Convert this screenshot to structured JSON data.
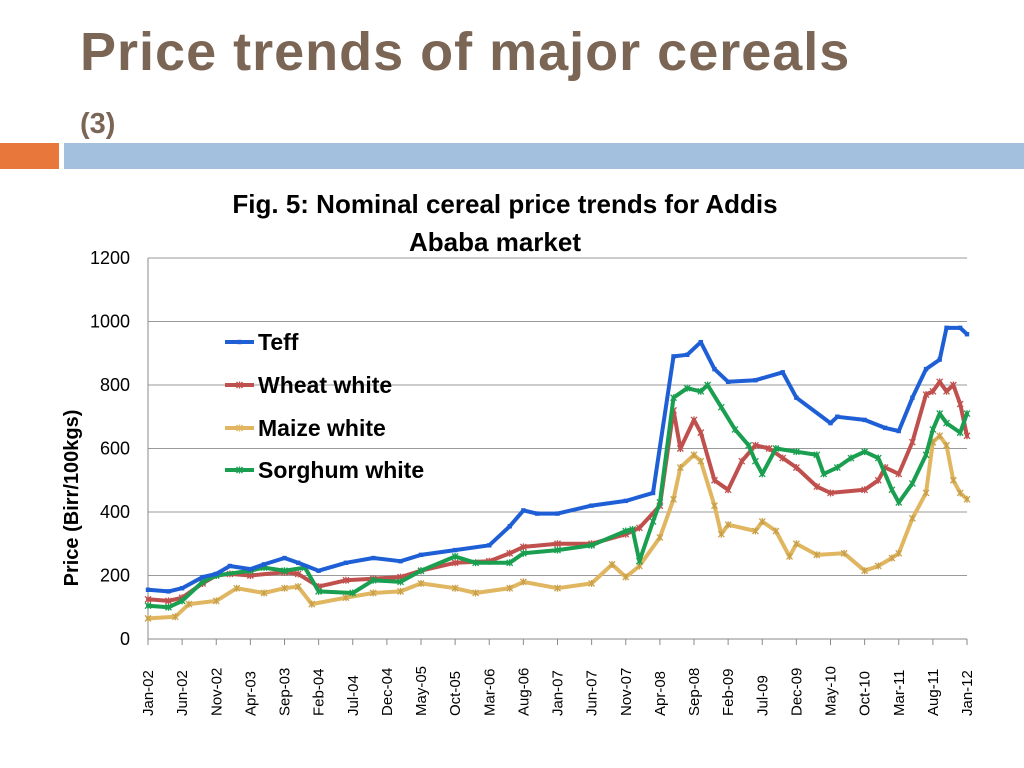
{
  "slide": {
    "title": "Price trends of major cereals",
    "subtitle": "(3)"
  },
  "chart_data": {
    "type": "line",
    "title_lines": [
      "Fig. 5: Nominal cereal price trends for Addis",
      "Ababa market"
    ],
    "ylabel": "Price (Birr/100kgs)",
    "xlabel": "",
    "ylim": [
      0,
      1200
    ],
    "yticks": [
      0,
      200,
      400,
      600,
      800,
      1000,
      1200
    ],
    "grid": "horizontal",
    "legend": "upper-left inside plot",
    "x_start": "Jan-02",
    "x_end": "Jan-12",
    "x_tick_labels": [
      "Jan-02",
      "Jun-02",
      "Nov-02",
      "Apr-03",
      "Sep-03",
      "Feb-04",
      "Jul-04",
      "Dec-04",
      "May-05",
      "Oct-05",
      "Mar-06",
      "Aug-06",
      "Jan-07",
      "Jun-07",
      "Nov-07",
      "Apr-08",
      "Sep-08",
      "Feb-09",
      "Jul-09",
      "Dec-09",
      "May-10",
      "Oct-10",
      "Mar-11",
      "Aug-11",
      "Jan-12"
    ],
    "series": [
      {
        "name": "Teff",
        "color": "#1f5fd6",
        "marker": "square",
        "points": [
          [
            "Jan-02",
            155
          ],
          [
            "Apr-02",
            150
          ],
          [
            "Jun-02",
            160
          ],
          [
            "Sep-02",
            195
          ],
          [
            "Nov-02",
            205
          ],
          [
            "Jan-03",
            230
          ],
          [
            "Apr-03",
            220
          ],
          [
            "Jun-03",
            235
          ],
          [
            "Sep-03",
            255
          ],
          [
            "Nov-03",
            240
          ],
          [
            "Feb-04",
            215
          ],
          [
            "Jun-04",
            240
          ],
          [
            "Oct-04",
            255
          ],
          [
            "Feb-05",
            245
          ],
          [
            "May-05",
            265
          ],
          [
            "Oct-05",
            280
          ],
          [
            "Mar-06",
            295
          ],
          [
            "Jun-06",
            355
          ],
          [
            "Aug-06",
            405
          ],
          [
            "Oct-06",
            395
          ],
          [
            "Jan-07",
            395
          ],
          [
            "Jun-07",
            420
          ],
          [
            "Nov-07",
            435
          ],
          [
            "Mar-08",
            460
          ],
          [
            "Jun-08",
            890
          ],
          [
            "Aug-08",
            895
          ],
          [
            "Oct-08",
            935
          ],
          [
            "Dec-08",
            850
          ],
          [
            "Feb-09",
            810
          ],
          [
            "Jun-09",
            815
          ],
          [
            "Oct-09",
            840
          ],
          [
            "Dec-09",
            760
          ],
          [
            "May-10",
            680
          ],
          [
            "Jun-10",
            700
          ],
          [
            "Oct-10",
            690
          ],
          [
            "Jan-11",
            665
          ],
          [
            "Mar-11",
            655
          ],
          [
            "May-11",
            760
          ],
          [
            "Jul-11",
            850
          ],
          [
            "Sep-11",
            880
          ],
          [
            "Oct-11",
            980
          ],
          [
            "Dec-11",
            980
          ],
          [
            "Jan-12",
            960
          ]
        ]
      },
      {
        "name": "Wheat white",
        "color": "#c0504d",
        "marker": "asterisk",
        "points": [
          [
            "Jan-02",
            125
          ],
          [
            "Apr-02",
            120
          ],
          [
            "Jun-02",
            130
          ],
          [
            "Sep-02",
            175
          ],
          [
            "Nov-02",
            200
          ],
          [
            "Jan-03",
            205
          ],
          [
            "Apr-03",
            200
          ],
          [
            "Sep-03",
            210
          ],
          [
            "Nov-03",
            205
          ],
          [
            "Feb-04",
            165
          ],
          [
            "Jun-04",
            185
          ],
          [
            "Oct-04",
            190
          ],
          [
            "Feb-05",
            195
          ],
          [
            "May-05",
            215
          ],
          [
            "Oct-05",
            240
          ],
          [
            "Mar-06",
            245
          ],
          [
            "Jun-06",
            270
          ],
          [
            "Aug-06",
            290
          ],
          [
            "Jan-07",
            300
          ],
          [
            "Jun-07",
            300
          ],
          [
            "Nov-07",
            330
          ],
          [
            "Jan-08",
            350
          ],
          [
            "Apr-08",
            420
          ],
          [
            "Jun-08",
            720
          ],
          [
            "Jul-08",
            600
          ],
          [
            "Sep-08",
            690
          ],
          [
            "Oct-08",
            650
          ],
          [
            "Dec-08",
            500
          ],
          [
            "Feb-09",
            470
          ],
          [
            "Apr-09",
            560
          ],
          [
            "Jun-09",
            610
          ],
          [
            "Aug-09",
            600
          ],
          [
            "Oct-09",
            570
          ],
          [
            "Dec-09",
            540
          ],
          [
            "Mar-10",
            480
          ],
          [
            "May-10",
            460
          ],
          [
            "Oct-10",
            470
          ],
          [
            "Dec-10",
            500
          ],
          [
            "Jan-11",
            540
          ],
          [
            "Mar-11",
            520
          ],
          [
            "May-11",
            620
          ],
          [
            "Jul-11",
            770
          ],
          [
            "Aug-11",
            780
          ],
          [
            "Sep-11",
            810
          ],
          [
            "Oct-11",
            780
          ],
          [
            "Nov-11",
            800
          ],
          [
            "Dec-11",
            740
          ],
          [
            "Jan-12",
            640
          ]
        ]
      },
      {
        "name": "Maize white",
        "color": "#e0b660",
        "marker": "asterisk",
        "points": [
          [
            "Jan-02",
            65
          ],
          [
            "May-02",
            70
          ],
          [
            "Jul-02",
            110
          ],
          [
            "Nov-02",
            120
          ],
          [
            "Feb-03",
            160
          ],
          [
            "Jun-03",
            145
          ],
          [
            "Sep-03",
            160
          ],
          [
            "Nov-03",
            165
          ],
          [
            "Jan-04",
            110
          ],
          [
            "Jun-04",
            130
          ],
          [
            "Oct-04",
            145
          ],
          [
            "Feb-05",
            150
          ],
          [
            "May-05",
            175
          ],
          [
            "Oct-05",
            160
          ],
          [
            "Jan-06",
            145
          ],
          [
            "Jun-06",
            160
          ],
          [
            "Aug-06",
            180
          ],
          [
            "Jan-07",
            160
          ],
          [
            "Jun-07",
            175
          ],
          [
            "Sep-07",
            235
          ],
          [
            "Nov-07",
            195
          ],
          [
            "Jan-08",
            230
          ],
          [
            "Apr-08",
            320
          ],
          [
            "Jun-08",
            440
          ],
          [
            "Jul-08",
            540
          ],
          [
            "Sep-08",
            580
          ],
          [
            "Oct-08",
            560
          ],
          [
            "Dec-08",
            420
          ],
          [
            "Jan-09",
            330
          ],
          [
            "Feb-09",
            360
          ],
          [
            "Jun-09",
            340
          ],
          [
            "Jul-09",
            370
          ],
          [
            "Sep-09",
            340
          ],
          [
            "Nov-09",
            260
          ],
          [
            "Dec-09",
            300
          ],
          [
            "Mar-10",
            265
          ],
          [
            "Jul-10",
            270
          ],
          [
            "Oct-10",
            215
          ],
          [
            "Dec-10",
            230
          ],
          [
            "Feb-11",
            255
          ],
          [
            "Mar-11",
            270
          ],
          [
            "May-11",
            380
          ],
          [
            "Jul-11",
            460
          ],
          [
            "Aug-11",
            620
          ],
          [
            "Sep-11",
            640
          ],
          [
            "Oct-11",
            610
          ],
          [
            "Nov-11",
            500
          ],
          [
            "Dec-11",
            460
          ],
          [
            "Jan-12",
            440
          ]
        ]
      },
      {
        "name": "Sorghum white",
        "color": "#1a9e50",
        "marker": "asterisk",
        "points": [
          [
            "Jan-02",
            105
          ],
          [
            "Apr-02",
            100
          ],
          [
            "Jun-02",
            120
          ],
          [
            "Sep-02",
            180
          ],
          [
            "Nov-02",
            200
          ],
          [
            "Apr-03",
            215
          ],
          [
            "Jun-03",
            225
          ],
          [
            "Sep-03",
            215
          ],
          [
            "Dec-03",
            225
          ],
          [
            "Feb-04",
            150
          ],
          [
            "Jul-04",
            145
          ],
          [
            "Oct-04",
            185
          ],
          [
            "Feb-05",
            180
          ],
          [
            "May-05",
            215
          ],
          [
            "Oct-05",
            260
          ],
          [
            "Jan-06",
            240
          ],
          [
            "Jun-06",
            240
          ],
          [
            "Aug-06",
            270
          ],
          [
            "Jan-07",
            280
          ],
          [
            "Jun-07",
            295
          ],
          [
            "Nov-07",
            340
          ],
          [
            "Dec-07",
            345
          ],
          [
            "Jan-08",
            245
          ],
          [
            "Mar-08",
            370
          ],
          [
            "Apr-08",
            430
          ],
          [
            "Jun-08",
            760
          ],
          [
            "Aug-08",
            790
          ],
          [
            "Oct-08",
            780
          ],
          [
            "Nov-08",
            800
          ],
          [
            "Jan-09",
            730
          ],
          [
            "Mar-09",
            660
          ],
          [
            "May-09",
            610
          ],
          [
            "Jun-09",
            560
          ],
          [
            "Jul-09",
            520
          ],
          [
            "Sep-09",
            600
          ],
          [
            "Dec-09",
            590
          ],
          [
            "Mar-10",
            580
          ],
          [
            "Apr-10",
            520
          ],
          [
            "Jun-10",
            540
          ],
          [
            "Aug-10",
            570
          ],
          [
            "Oct-10",
            590
          ],
          [
            "Dec-10",
            570
          ],
          [
            "Feb-11",
            470
          ],
          [
            "Mar-11",
            430
          ],
          [
            "May-11",
            490
          ],
          [
            "Jul-11",
            580
          ],
          [
            "Aug-11",
            660
          ],
          [
            "Sep-11",
            710
          ],
          [
            "Oct-11",
            680
          ],
          [
            "Dec-11",
            650
          ],
          [
            "Jan-12",
            710
          ]
        ]
      }
    ]
  }
}
